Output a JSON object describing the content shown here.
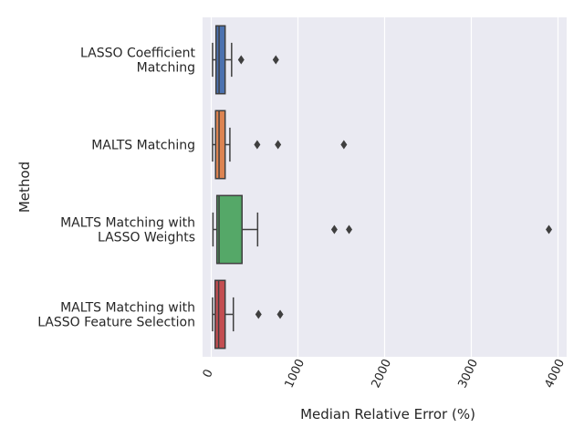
{
  "chart_data": {
    "type": "boxplot",
    "orientation": "horizontal",
    "xlabel": "Median Relative Error (%)",
    "ylabel": "Method",
    "xlim": [
      -100,
      4100
    ],
    "xticks": [
      0,
      1000,
      2000,
      3000,
      4000
    ],
    "xtick_labels": [
      "0",
      "1000",
      "2000",
      "3000",
      "4000"
    ],
    "grid": true,
    "colors": {
      "background": "#eaeaf2",
      "grid": "#ffffff",
      "box_edge": "#3f3f3f"
    },
    "categories": [
      {
        "label_lines": [
          "LASSO Coefficient",
          "Matching"
        ],
        "color": "#4c72b0",
        "whisker_low": 15,
        "q1": 55,
        "median": 90,
        "q3": 160,
        "whisker_high": 235,
        "outliers": [
          345,
          745
        ]
      },
      {
        "label_lines": [
          "MALTS Matching"
        ],
        "color": "#dd8452",
        "whisker_low": 15,
        "q1": 50,
        "median": 90,
        "q3": 160,
        "whisker_high": 215,
        "outliers": [
          530,
          770,
          1530
        ]
      },
      {
        "label_lines": [
          "MALTS Matching with",
          "LASSO Weights"
        ],
        "color": "#55a868",
        "whisker_low": 20,
        "q1": 65,
        "median": 90,
        "q3": 355,
        "whisker_high": 535,
        "outliers": [
          1420,
          1590,
          3895
        ]
      },
      {
        "label_lines": [
          "MALTS Matching with",
          "LASSO Feature Selection"
        ],
        "color": "#c44e52",
        "whisker_low": 15,
        "q1": 45,
        "median": 85,
        "q3": 160,
        "whisker_high": 255,
        "outliers": [
          545,
          795
        ]
      }
    ]
  }
}
